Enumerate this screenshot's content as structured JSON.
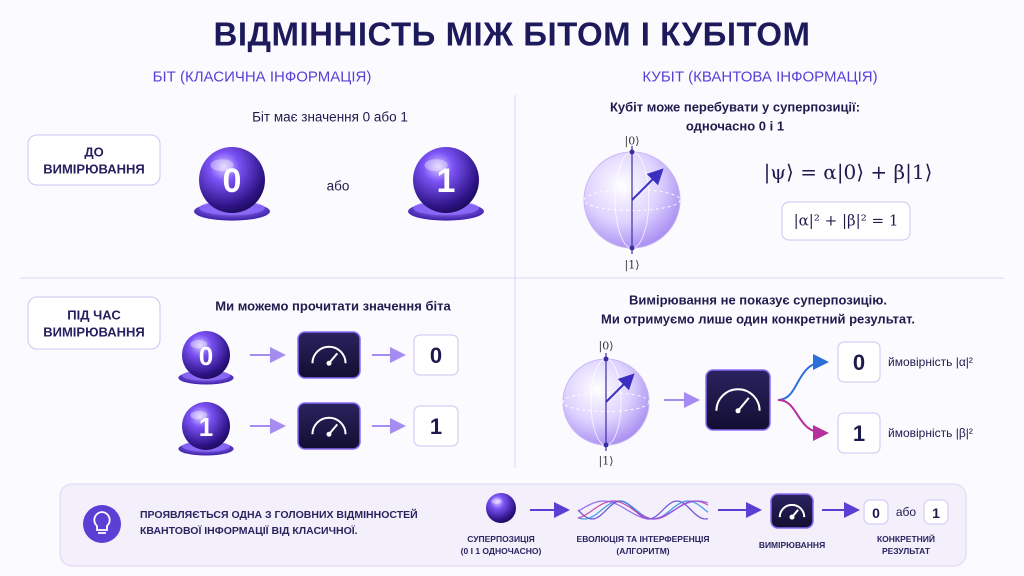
{
  "header": {
    "title": "ВІДМІННІСТЬ МІЖ БІТОМ І КУБІТОМ"
  },
  "columns": {
    "classical": "БІТ (КЛАСИЧНА ІНФОРМАЦІЯ)",
    "quantum": "КУБІТ (КВАНТОВА ІНФОРМАЦІЯ)"
  },
  "rows": [
    {
      "label": [
        "ДО",
        "ВИМІРЮВАННЯ"
      ],
      "classical": {
        "caption": [
          "Біт має значення 0 або 1"
        ],
        "bits": [
          "0",
          "1"
        ],
        "separator": "або"
      },
      "quantum": {
        "caption": [
          "Кубіт може перебувати у суперпозиції:",
          "одночасно 0 і 1"
        ],
        "ket_zero": "|0⟩",
        "ket_one": "|1⟩",
        "state": "|ψ⟩ = α|0⟩ + β|1⟩",
        "normalization": "|α|² + |β|² = 1"
      }
    },
    {
      "label": [
        "ПІД ЧАС",
        "ВИМІРЮВАННЯ"
      ],
      "classical": {
        "caption": [
          "Ми можемо прочитати значення біта"
        ],
        "bits": [
          "0",
          "1"
        ],
        "results": [
          "0",
          "1"
        ]
      },
      "quantum": {
        "caption": [
          "Вимірювання не показує суперпозицію.",
          "Ми отримуємо лише один конкретний результат."
        ],
        "ket_zero": "|0⟩",
        "ket_one": "|1⟩",
        "outcomes": [
          {
            "value": "0",
            "label": "ймовірність |α|²"
          },
          {
            "value": "1",
            "label": "ймовірність |β|²"
          }
        ]
      }
    }
  ],
  "footer": {
    "message": [
      "ПРОЯВЛЯЄТЬСЯ ОДНА З ГОЛОВНИХ ВІДМІННОСТЕЙ",
      "КВАНТОВОЇ ІНФОРМАЦІЇ ВІД КЛАСИЧНОЇ."
    ],
    "steps": [
      {
        "label": [
          "СУПЕРПОЗИЦІЯ",
          "(0 І 1 ОДНОЧАСНО)"
        ]
      },
      {
        "label": [
          "ЕВОЛЮЦІЯ ТА ІНТЕРФЕРЕНЦІЯ",
          "(АЛГОРИТМ)"
        ]
      },
      {
        "label": [
          "ВИМІРЮВАННЯ"
        ]
      },
      {
        "label": [
          "КОНКРЕТНИЙ",
          "РЕЗУЛЬТАТ"
        ]
      }
    ],
    "result": [
      "0",
      "або",
      "1"
    ]
  }
}
